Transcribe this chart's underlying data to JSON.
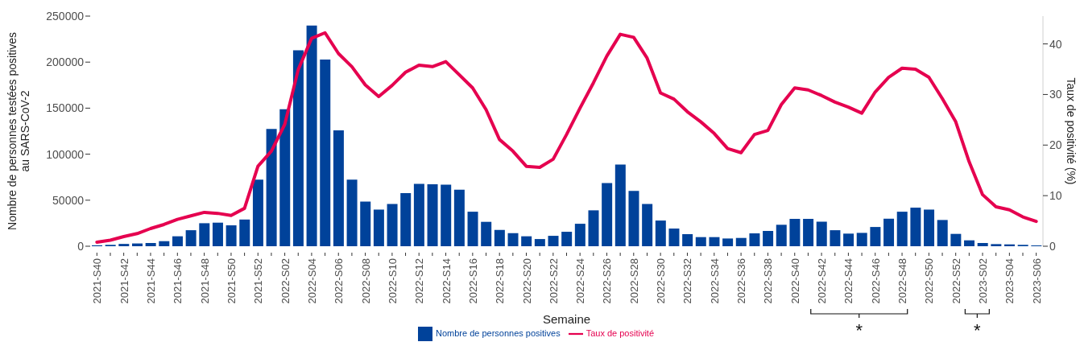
{
  "chart_data": {
    "type": "bar",
    "xlabel": "Semaine",
    "ylabel": "Nombre de personnes testées positives au SARS-CoV-2",
    "y2label": "Taux de positivité (%)",
    "categories": [
      "2021-S40",
      null,
      "2021-S42",
      null,
      "2021-S44",
      null,
      "2021-S46",
      null,
      "2021-S48",
      null,
      "2021-S50",
      null,
      "2021-S52",
      null,
      "2022-S02",
      null,
      "2022-S04",
      null,
      "2022-S06",
      null,
      "2022-S08",
      null,
      "2022-S10",
      null,
      "2022-S12",
      null,
      "2022-S14",
      null,
      "2022-S16",
      null,
      "2022-S18",
      null,
      "2022-S20",
      null,
      "2022-S22",
      null,
      "2022-S24",
      null,
      "2022-S26",
      null,
      "2022-S28",
      null,
      "2022-S30",
      null,
      "2022-S32",
      null,
      "2022-S34",
      null,
      "2022-S36",
      null,
      "2022-S38",
      null,
      "2022-S40",
      null,
      "2022-S42",
      null,
      "2022-S44",
      null,
      "2022-S46",
      null,
      "2022-S48",
      null,
      "2022-S50",
      null,
      "2022-S52",
      null,
      "2023-S02",
      null,
      "2023-S04",
      null,
      "2023-S06"
    ],
    "series": [
      {
        "name": "Nombre de personnes positives",
        "color": "#00429a",
        "values": [
          1000,
          1500,
          2500,
          3000,
          3500,
          5500,
          10800,
          17400,
          25000,
          25600,
          22700,
          29000,
          72400,
          127300,
          148800,
          212800,
          239800,
          202900,
          125900,
          72400,
          48500,
          39800,
          45900,
          57800,
          67700,
          67200,
          66900,
          61300,
          37500,
          26500,
          17700,
          14200,
          10800,
          7800,
          11300,
          15700,
          24400,
          39000,
          68600,
          88700,
          60200,
          45900,
          27900,
          19200,
          13100,
          9900,
          9900,
          8400,
          9000,
          14000,
          16600,
          23300,
          29700,
          29700,
          26700,
          17400,
          13700,
          14500,
          20900,
          29900,
          37500,
          41900,
          39800,
          28500,
          13400,
          6400,
          3500,
          2300,
          2000,
          1500,
          900
        ]
      },
      {
        "name": "Taux de positivité",
        "type": "line",
        "axis": "y2",
        "color": "#e5004f",
        "values": [
          0.8,
          1.2,
          1.9,
          2.5,
          3.5,
          4.3,
          5.3,
          6.0,
          6.7,
          6.5,
          6.1,
          7.5,
          15.8,
          18.8,
          24.1,
          34.9,
          41.1,
          42.2,
          38.1,
          35.5,
          31.9,
          29.6,
          31.8,
          34.4,
          35.8,
          35.5,
          36.5,
          33.9,
          31.3,
          27.0,
          21.1,
          18.8,
          15.8,
          15.6,
          17.2,
          22.1,
          27.3,
          32.3,
          37.6,
          41.9,
          41.3,
          37.2,
          30.3,
          29.1,
          26.6,
          24.6,
          22.3,
          19.3,
          18.5,
          22.1,
          22.9,
          28.0,
          31.3,
          30.9,
          29.8,
          28.5,
          27.5,
          26.3,
          30.5,
          33.4,
          35.2,
          35.0,
          33.4,
          29.2,
          24.6,
          16.7,
          10.2,
          7.8,
          7.2,
          5.8,
          4.9
        ]
      }
    ],
    "ylim": [
      0,
      250000
    ],
    "yticks": [
      0,
      50000,
      100000,
      150000,
      200000,
      250000
    ],
    "y2lim": [
      0,
      45.5
    ],
    "y2ticks": [
      0,
      10,
      20,
      30,
      40
    ],
    "legend": "bottom",
    "marker": "none",
    "line_style": "solid",
    "annotations": [
      "*",
      "*"
    ]
  }
}
